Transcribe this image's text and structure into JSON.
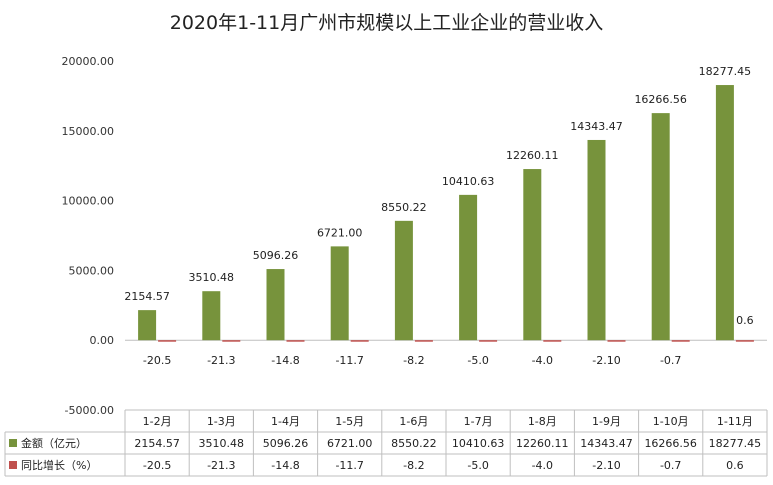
{
  "chart_data": {
    "type": "bar",
    "title": "2020年1-11月广州市规模以上工业企业的营业收入",
    "categories": [
      "1-2月",
      "1-3月",
      "1-4月",
      "1-5月",
      "1-6月",
      "1-7月",
      "1-8月",
      "1-9月",
      "1-10月",
      "1-11月"
    ],
    "series": [
      {
        "name": "金额（亿元）",
        "color": "#77933C",
        "values": [
          2154.57,
          3510.48,
          5096.26,
          6721.0,
          8550.22,
          10410.63,
          12260.11,
          14343.47,
          16266.56,
          18277.45
        ],
        "labels": [
          "2154.57",
          "3510.48",
          "5096.26",
          "6721.00",
          "8550.22",
          "10410.63",
          "12260.11",
          "14343.47",
          "16266.56",
          "18277.45"
        ]
      },
      {
        "name": "同比增长（%）",
        "color": "#C0504D",
        "values": [
          -20.5,
          -21.3,
          -14.8,
          -11.7,
          -8.2,
          -5.0,
          -4.0,
          -2.1,
          -0.7,
          0.6
        ],
        "labels": [
          "-20.5",
          "-21.3",
          "-14.8",
          "-11.7",
          "-8.2",
          "-5.0",
          "-4.0",
          "-2.10",
          "-0.7",
          "0.6"
        ]
      }
    ],
    "ylim": [
      -5000,
      20000
    ],
    "yticks": [
      "-5000.00",
      "0.00",
      "5000.00",
      "10000.00",
      "15000.00",
      "20000.00"
    ],
    "ytick_values": [
      -5000,
      0,
      5000,
      10000,
      15000,
      20000
    ],
    "grid": false,
    "legend": "data-table"
  }
}
